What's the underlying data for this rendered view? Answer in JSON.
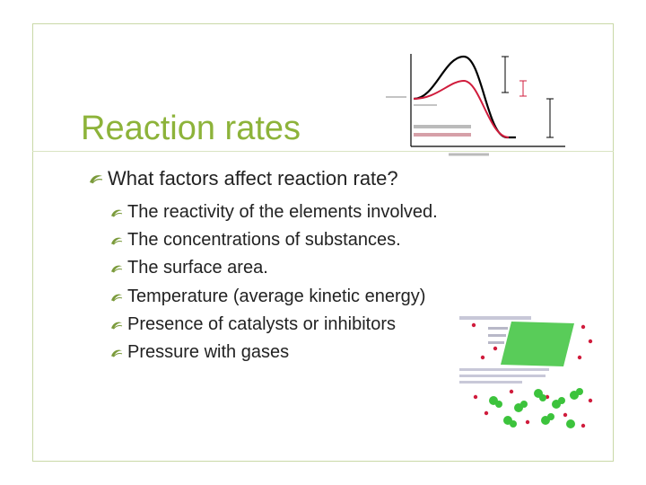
{
  "slide": {
    "title": "Reaction rates",
    "main_bullet": "What factors affect reaction rate?",
    "sub_bullets": [
      "The reactivity of the elements involved.",
      "The concentrations of substances.",
      "The surface area.",
      "Temperature (average kinetic energy)",
      "Presence of catalysts or inhibitors",
      "Pressure with gases"
    ]
  },
  "colors": {
    "title": "#8db33a",
    "frame": "#c9d9a8",
    "bullet_icon": "#7a9a3a",
    "curve_uncatalyzed": "#000000",
    "curve_catalyzed": "#d01c3c",
    "particle_green": "#3cc33c",
    "particle_red": "#d01c3c"
  }
}
